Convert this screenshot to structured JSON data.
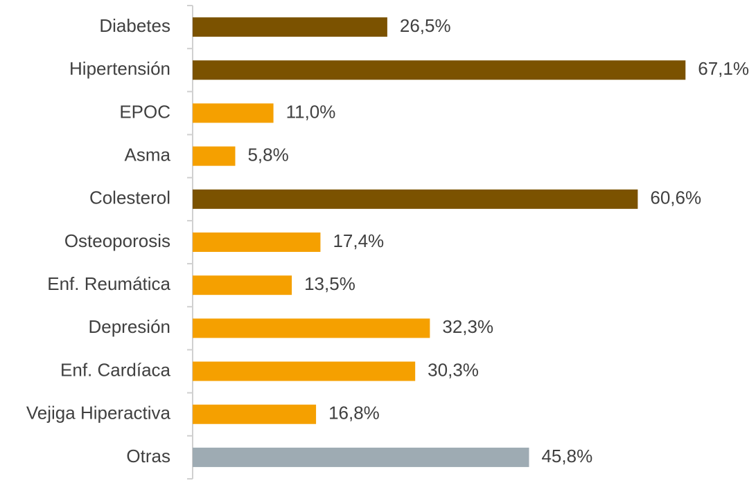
{
  "chart_data": {
    "type": "bar",
    "orientation": "horizontal",
    "categories": [
      "Diabetes",
      "Hipertensión",
      "EPOC",
      "Asma",
      "Colesterol",
      "Osteoporosis",
      "Enf. Reumática",
      "Depresión",
      "Enf. Cardíaca",
      "Vejiga Hiperactiva",
      "Otras"
    ],
    "values": [
      26.5,
      67.1,
      11.0,
      5.8,
      60.6,
      17.4,
      13.5,
      32.3,
      30.3,
      16.8,
      45.8
    ],
    "value_labels": [
      "26,5%",
      "67,1%",
      "11,0%",
      "5,8%",
      "60,6%",
      "17,4%",
      "13,5%",
      "32,3%",
      "30,3%",
      "16,8%",
      "45,8%"
    ],
    "colors": [
      "#7b5200",
      "#7b5200",
      "#f5a000",
      "#f5a000",
      "#7b5200",
      "#f5a000",
      "#f5a000",
      "#f5a000",
      "#f5a000",
      "#f5a000",
      "#9eabb3"
    ]
  }
}
